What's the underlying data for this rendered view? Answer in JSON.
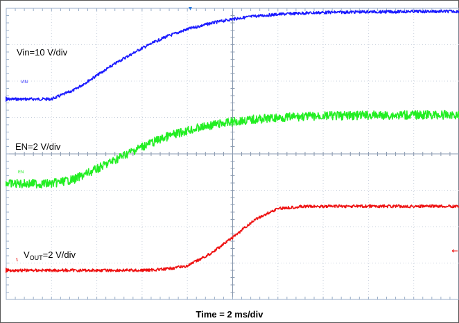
{
  "chart_data": {
    "type": "line",
    "title": "",
    "xlabel": "Time = 2 ms/div",
    "x_unit": "ms",
    "x_div": 2,
    "x_divisions": 10,
    "y_divisions": 8,
    "grid": true,
    "x": [
      0,
      1,
      2,
      3,
      4,
      5,
      6,
      7,
      8,
      9,
      10,
      11,
      12,
      13,
      14,
      15,
      16,
      17,
      18,
      19,
      20
    ],
    "series": [
      {
        "name": "VIN",
        "marker_label": "VIN",
        "scale_label": "Vin=10 V/div",
        "color": "#1a1aff",
        "noise": 0.04,
        "values": [
          0,
          0,
          0,
          0.25,
          0.65,
          1.05,
          1.4,
          1.7,
          1.92,
          2.08,
          2.2,
          2.28,
          2.33,
          2.36,
          2.38,
          2.39,
          2.4,
          2.4,
          2.41,
          2.41,
          2.41
        ]
      },
      {
        "name": "EN",
        "marker_label": "EN",
        "scale_label": "EN=2 V/div",
        "color": "#22ee22",
        "noise": 0.12,
        "values": [
          0,
          0,
          0,
          0.12,
          0.4,
          0.72,
          1.02,
          1.27,
          1.46,
          1.6,
          1.7,
          1.77,
          1.81,
          1.84,
          1.86,
          1.87,
          1.88,
          1.88,
          1.89,
          1.89,
          1.89
        ]
      },
      {
        "name": "VOUT",
        "marker_label": "",
        "scale_label_main": "V",
        "scale_label_sub": "OUT",
        "scale_label_rest": "=2 V/div",
        "color": "#ee1111",
        "noise": 0.04,
        "values": [
          0,
          0,
          0,
          0,
          0,
          0,
          0,
          0.03,
          0.12,
          0.45,
          0.9,
          1.4,
          1.7,
          1.75,
          1.76,
          1.76,
          1.76,
          1.76,
          1.76,
          1.76,
          1.76
        ]
      }
    ]
  }
}
